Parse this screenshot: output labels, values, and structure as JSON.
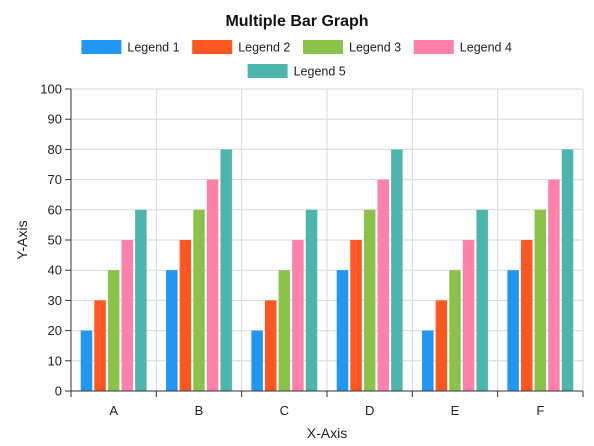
{
  "chart_data": {
    "type": "bar",
    "title": "Multiple Bar Graph",
    "xlabel": "X-Axis",
    "ylabel": "Y-Axis",
    "categories": [
      "A",
      "B",
      "C",
      "D",
      "E",
      "F"
    ],
    "ylim": [
      0,
      100
    ],
    "yticks": [
      0,
      10,
      20,
      30,
      40,
      50,
      60,
      70,
      80,
      90,
      100
    ],
    "grid": true,
    "legend_position": "top",
    "series": [
      {
        "name": "Legend 1",
        "color": "#2196F3",
        "values": [
          20,
          40,
          20,
          40,
          20,
          40
        ]
      },
      {
        "name": "Legend 2",
        "color": "#FF5722",
        "values": [
          30,
          50,
          30,
          50,
          30,
          50
        ]
      },
      {
        "name": "Legend 3",
        "color": "#8BC34A",
        "values": [
          40,
          60,
          40,
          60,
          40,
          60
        ]
      },
      {
        "name": "Legend 4",
        "color": "#FF80AB",
        "values": [
          50,
          70,
          50,
          70,
          50,
          70
        ]
      },
      {
        "name": "Legend 5",
        "color": "#4DB6AC",
        "values": [
          60,
          80,
          60,
          80,
          60,
          80
        ]
      }
    ]
  }
}
